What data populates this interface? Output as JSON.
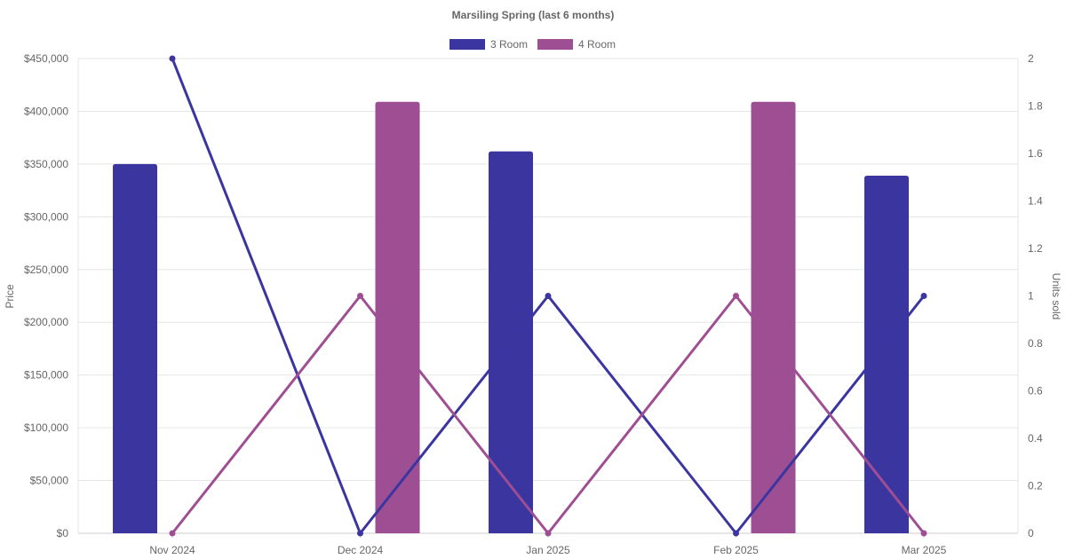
{
  "chart_data": {
    "type": "bar",
    "title": "Marsiling Spring (last 6 months)",
    "categories": [
      "Nov 2024",
      "Dec 2024",
      "Jan 2025",
      "Feb 2025",
      "Mar 2025"
    ],
    "y_left": {
      "label": "Price",
      "min": 0,
      "max": 450000,
      "step": 50000,
      "ticks": [
        "$0",
        "$50,000",
        "$100,000",
        "$150,000",
        "$200,000",
        "$250,000",
        "$300,000",
        "$350,000",
        "$400,000",
        "$450,000"
      ]
    },
    "y_right": {
      "label": "Units sold",
      "min": 0,
      "max": 2,
      "step": 0.2,
      "ticks": [
        "0",
        "0.2",
        "0.4",
        "0.6",
        "0.8",
        "1",
        "1.2",
        "1.4",
        "1.6",
        "1.8",
        "2"
      ]
    },
    "series": [
      {
        "name": "3 Room",
        "color": "#3b35a0",
        "price": [
          350000,
          null,
          362000,
          null,
          339000
        ],
        "units": [
          2,
          0,
          1,
          0,
          1
        ]
      },
      {
        "name": "4 Room",
        "color": "#9e4f94",
        "price": [
          null,
          409000,
          null,
          409000,
          null
        ],
        "units": [
          0,
          1,
          0,
          1,
          0
        ]
      }
    ],
    "legend": "top-center",
    "grid": true
  }
}
